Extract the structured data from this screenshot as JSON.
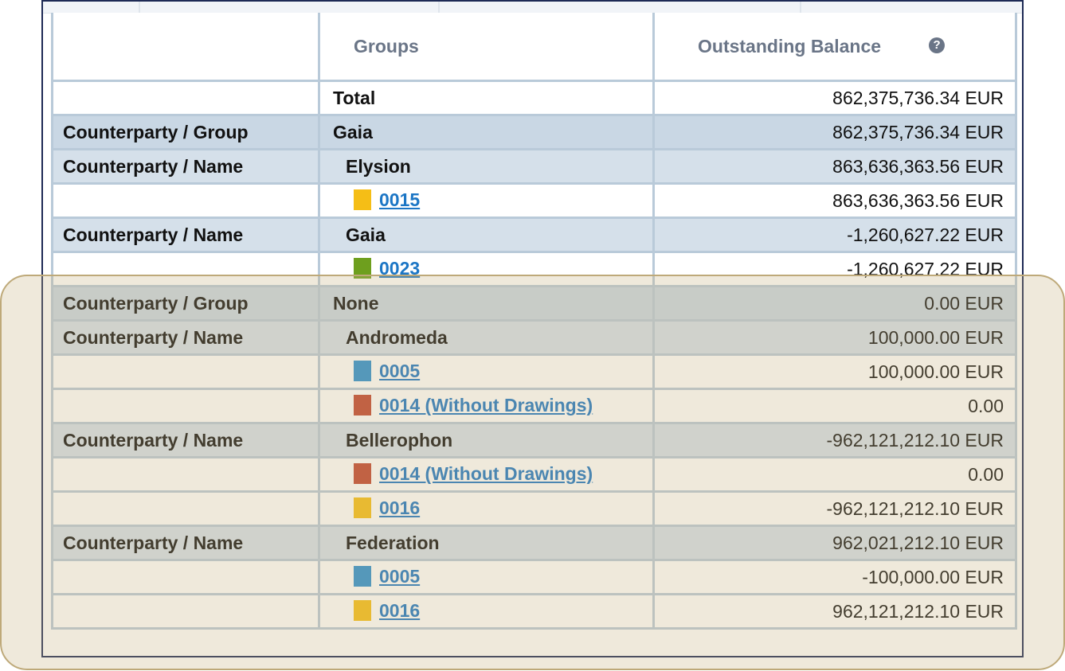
{
  "table": {
    "headers": {
      "col1": "",
      "groups": "Groups",
      "balance": "Outstanding Balance"
    },
    "help_icon": "question-circle-icon",
    "rows": [
      {
        "type": "total",
        "label": "",
        "group": "Total",
        "balance": "862,375,736.34 EUR"
      },
      {
        "type": "group",
        "label": "Counterparty / Group",
        "group": "Gaia",
        "balance": "862,375,736.34 EUR"
      },
      {
        "type": "name",
        "label": "Counterparty / Name",
        "group": "Elysion",
        "balance": "863,636,363.56 EUR"
      },
      {
        "type": "contract",
        "label": "",
        "link": "0015",
        "color": "#f5be16",
        "balance": "863,636,363.56 EUR"
      },
      {
        "type": "name",
        "label": "Counterparty / Name",
        "group": "Gaia",
        "balance": "-1,260,627.22 EUR"
      },
      {
        "type": "contract",
        "label": "",
        "link": "0023",
        "color": "#6e9f1e",
        "balance": "-1,260,627.22 EUR"
      },
      {
        "type": "group",
        "label": "Counterparty / Group",
        "group": "None",
        "balance": "0.00 EUR"
      },
      {
        "type": "name",
        "label": "Counterparty / Name",
        "group": "Andromeda",
        "balance": "100,000.00 EUR"
      },
      {
        "type": "contract",
        "label": "",
        "link": "0005",
        "color": "#2a8fd2",
        "balance": "100,000.00 EUR"
      },
      {
        "type": "contract",
        "label": "",
        "link": "0014 (Without Drawings)",
        "color": "#c0452f",
        "balance": "0.00"
      },
      {
        "type": "name",
        "label": "Counterparty / Name",
        "group": "Bellerophon",
        "balance": "-962,121,212.10 EUR"
      },
      {
        "type": "contract",
        "label": "",
        "link": "0014 (Without Drawings)",
        "color": "#c0452f",
        "balance": "0.00"
      },
      {
        "type": "contract",
        "label": "",
        "link": "0016",
        "color": "#f5be16",
        "balance": "-962,121,212.10 EUR"
      },
      {
        "type": "name",
        "label": "Counterparty / Name",
        "group": "Federation",
        "balance": "962,021,212.10 EUR"
      },
      {
        "type": "contract",
        "label": "",
        "link": "0005",
        "color": "#2a8fd2",
        "balance": "-100,000.00 EUR"
      },
      {
        "type": "contract",
        "label": "",
        "link": "0016",
        "color": "#f5be16",
        "balance": "962,121,212.10 EUR"
      }
    ]
  }
}
